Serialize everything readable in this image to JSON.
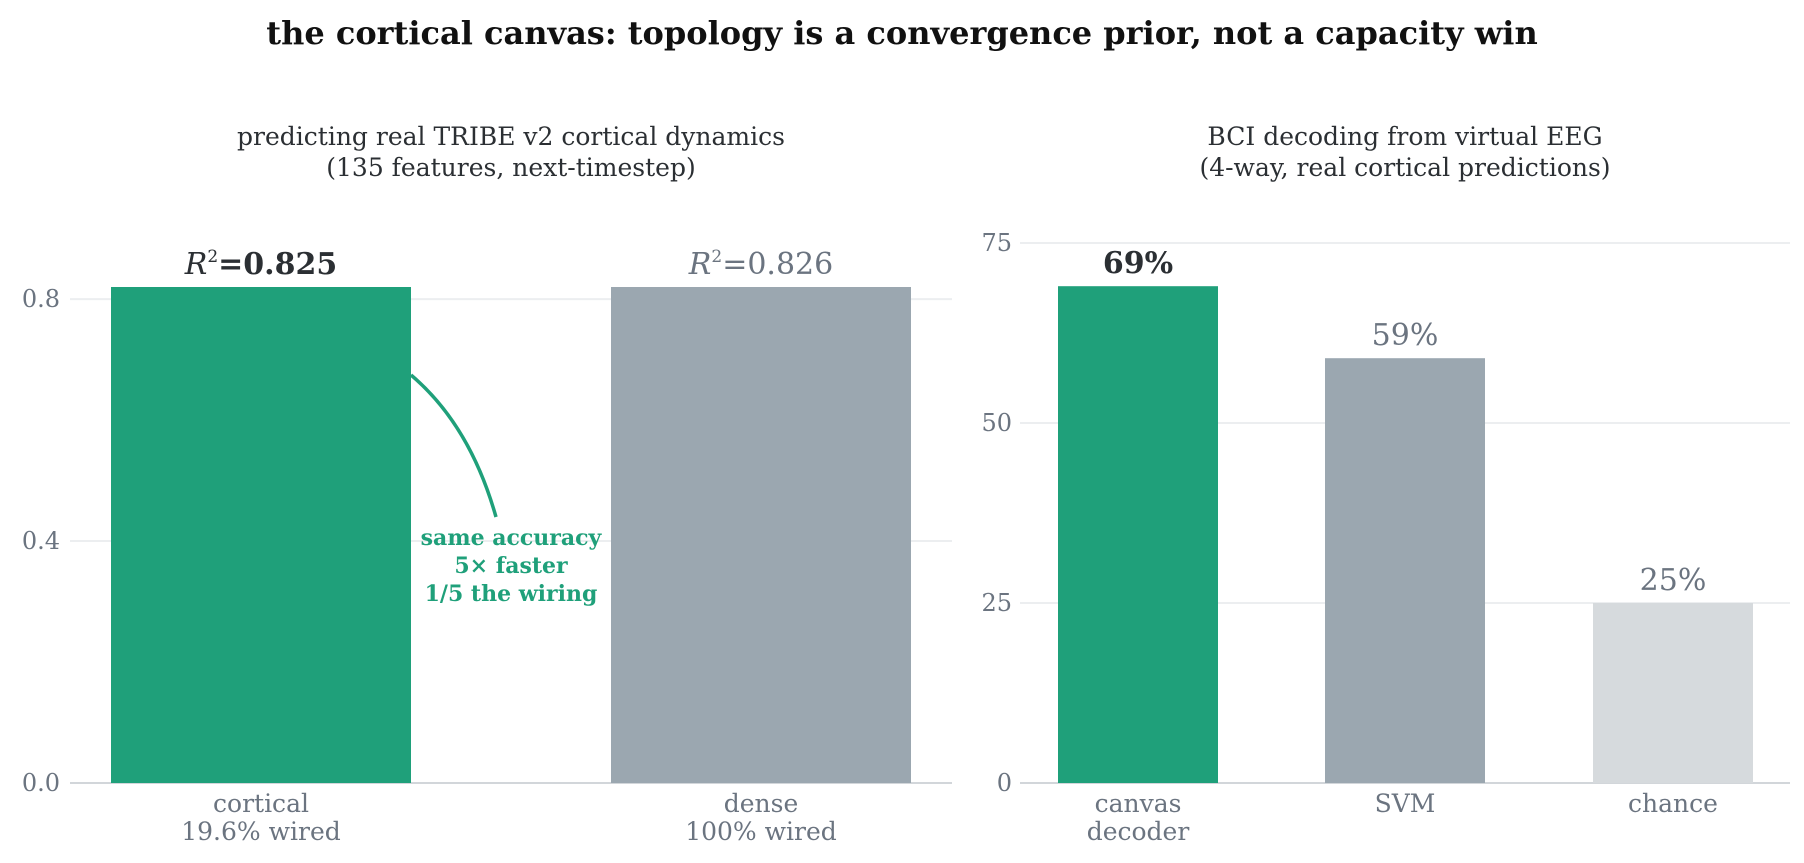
{
  "title": "the cortical canvas: topology is a convergence prior, not a capacity win",
  "colors": {
    "accent": "#1fa07a",
    "neutral": "#9ba7b0",
    "light": "#d6dadd",
    "text_dark": "#2b2f33",
    "text_muted": "#6b7480",
    "grid": "#eceef0",
    "axis": "#c3c8cd"
  },
  "chart_data": [
    {
      "type": "bar",
      "title_lines": [
        "predicting real TRIBE v2 cortical dynamics",
        "(135 features, next-timestep)"
      ],
      "categories": [
        [
          "cortical",
          "19.6% wired"
        ],
        [
          "dense",
          "100% wired"
        ]
      ],
      "values": [
        0.825,
        0.826
      ],
      "value_prefix": "=",
      "value_labels": [
        "0.825",
        "0.826"
      ],
      "highlight": [
        true,
        false
      ],
      "ylim": [
        0,
        0.82
      ],
      "yticks": [
        0.0,
        0.4,
        0.8
      ],
      "ytick_labels": [
        "0.0",
        "0.4",
        "0.8"
      ],
      "grid": true,
      "annotation": [
        "same accuracy",
        "5× faster",
        "1/5 the wiring"
      ]
    },
    {
      "type": "bar",
      "title_lines": [
        "BCI decoding from virtual EEG",
        "(4-way, real cortical predictions)"
      ],
      "categories": [
        [
          "canvas",
          "decoder"
        ],
        [
          "SVM"
        ],
        [
          "chance"
        ]
      ],
      "values": [
        69,
        59,
        25
      ],
      "value_labels": [
        "69%",
        "59%",
        "25%"
      ],
      "highlight": [
        true,
        false,
        false
      ],
      "ylim": [
        0,
        75
      ],
      "yticks": [
        0,
        25,
        50,
        75
      ],
      "ytick_labels": [
        "0",
        "25",
        "50",
        "75"
      ],
      "grid": true
    }
  ]
}
